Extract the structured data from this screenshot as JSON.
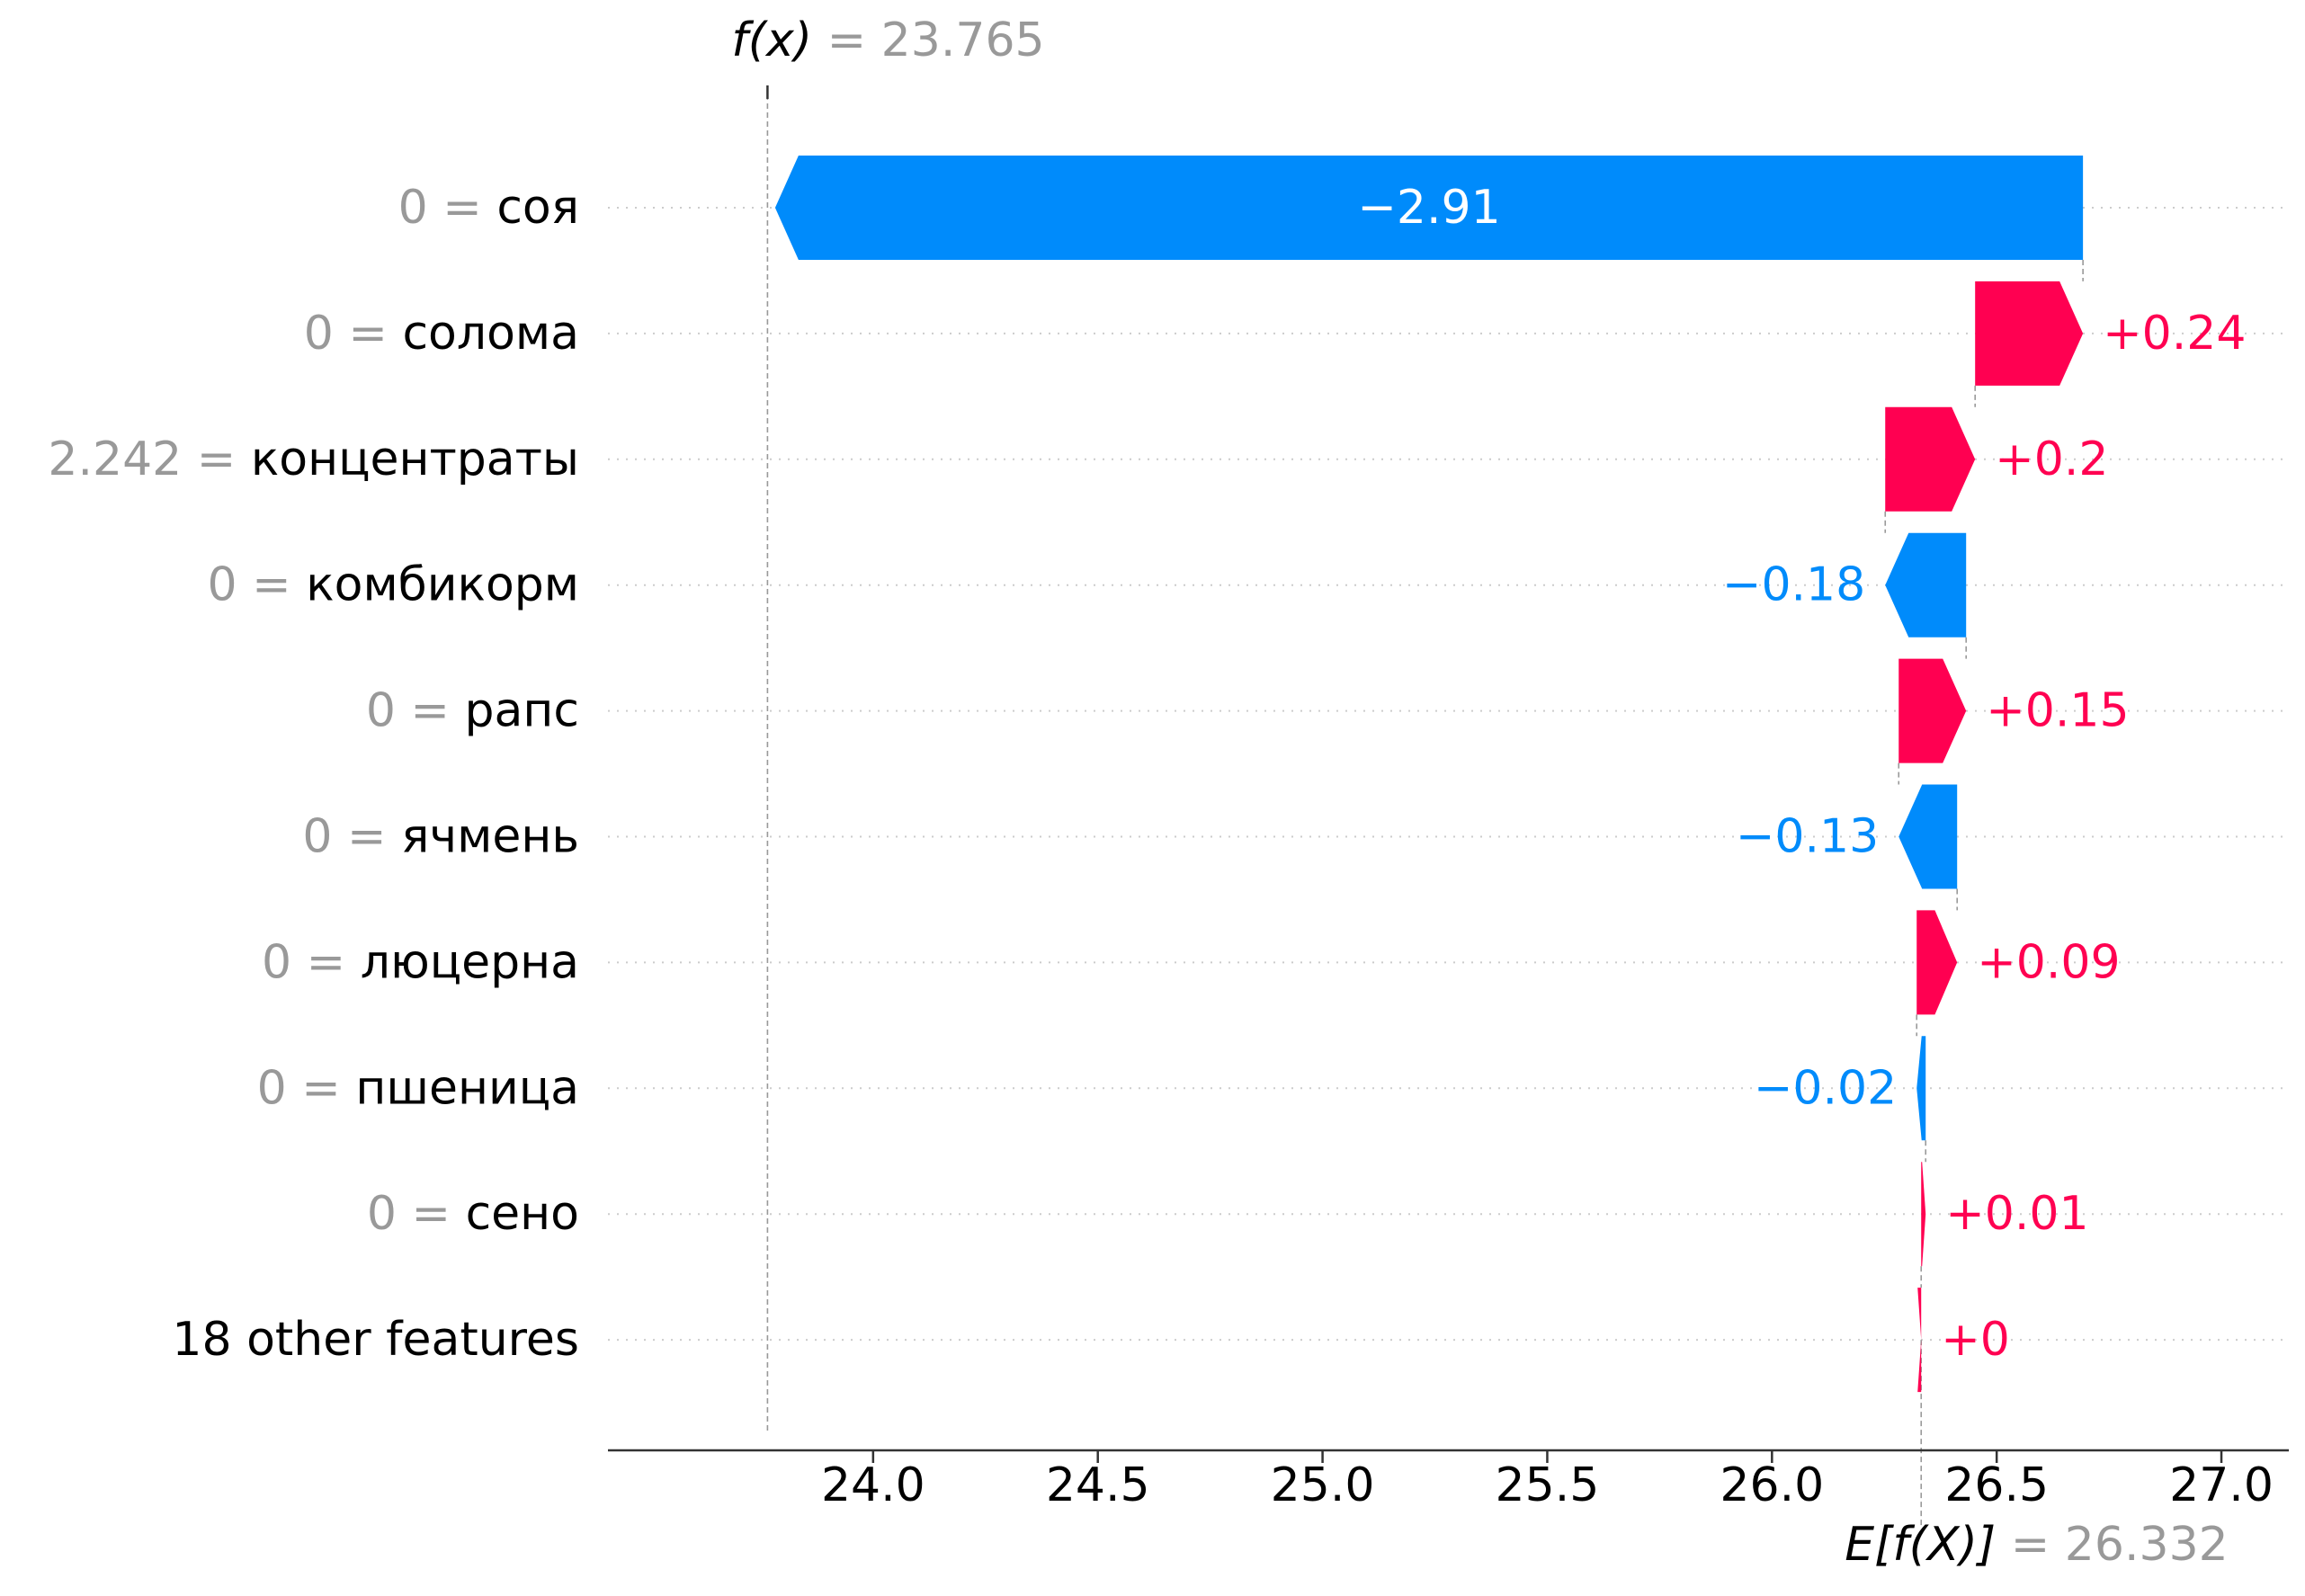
{
  "chart_data": {
    "type": "waterfall",
    "fx": {
      "label": "f(x)",
      "value_text": "= 23.765",
      "value": 23.765
    },
    "base": {
      "label": "E[f(X)]",
      "value_text": "= 26.332",
      "value": 26.332
    },
    "xlim": [
      23.41,
      27.15
    ],
    "ticks": [
      24.0,
      24.5,
      25.0,
      25.5,
      26.0,
      26.5,
      27.0
    ],
    "tick_labels": [
      "24.0",
      "24.5",
      "25.0",
      "25.5",
      "26.0",
      "26.5",
      "27.0"
    ],
    "features": [
      {
        "value": "0 =",
        "name": "соя",
        "shap": -2.91,
        "label": "−2.91"
      },
      {
        "value": "0 =",
        "name": "солома",
        "shap": 0.24,
        "label": "+0.24"
      },
      {
        "value": "2.242 =",
        "name": "концентраты",
        "shap": 0.2,
        "label": "+0.2"
      },
      {
        "value": "0 =",
        "name": "комбикорм",
        "shap": -0.18,
        "label": "−0.18"
      },
      {
        "value": "0 =",
        "name": "рапс",
        "shap": 0.15,
        "label": "+0.15"
      },
      {
        "value": "0 =",
        "name": "ячмень",
        "shap": -0.13,
        "label": "−0.13"
      },
      {
        "value": "0 =",
        "name": "люцерна",
        "shap": 0.09,
        "label": "+0.09"
      },
      {
        "value": "0 =",
        "name": "пшеница",
        "shap": -0.02,
        "label": "−0.02"
      },
      {
        "value": "0 =",
        "name": "сено",
        "shap": 0.01,
        "label": "+0.01"
      },
      {
        "value": "",
        "name": "18 other features",
        "shap": 0.0,
        "label": "+0"
      }
    ],
    "colors": {
      "positive": "#ff0051",
      "negative": "#008bfb",
      "muted": "#999999",
      "text": "#000000",
      "grid": "#cccccc"
    }
  }
}
